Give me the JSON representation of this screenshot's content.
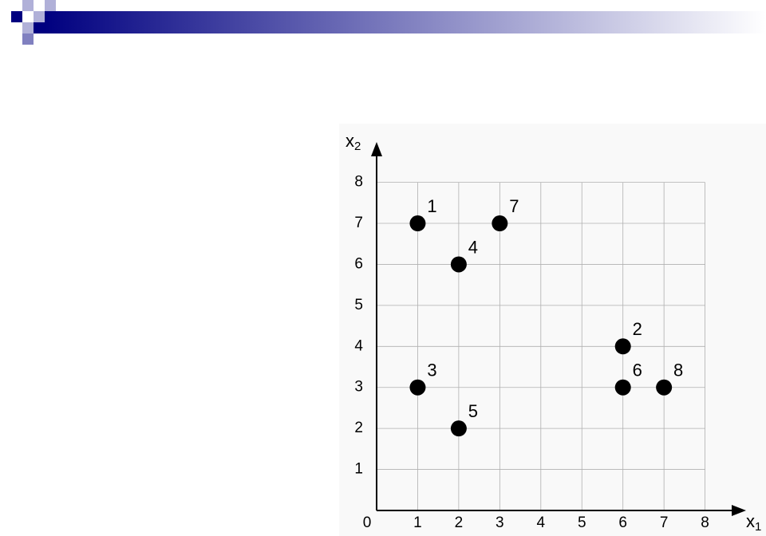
{
  "chart_data": {
    "type": "scatter",
    "x": [
      1,
      6,
      1,
      2,
      2,
      6,
      3,
      7
    ],
    "values": [
      7,
      4,
      3,
      6,
      2,
      3,
      7,
      3
    ],
    "point_labels": [
      1,
      2,
      3,
      4,
      5,
      6,
      7,
      8
    ],
    "color": "#000000",
    "xlim": [
      0,
      8
    ],
    "ylim": [
      0,
      8
    ],
    "xticks": [
      0,
      1,
      2,
      3,
      4,
      5,
      6,
      7,
      8
    ],
    "yticks": [
      1,
      2,
      3,
      4,
      5,
      6,
      7,
      8
    ],
    "xlabel": [
      "x",
      "1"
    ],
    "ylabel": [
      "x",
      "2"
    ],
    "grid": true
  }
}
